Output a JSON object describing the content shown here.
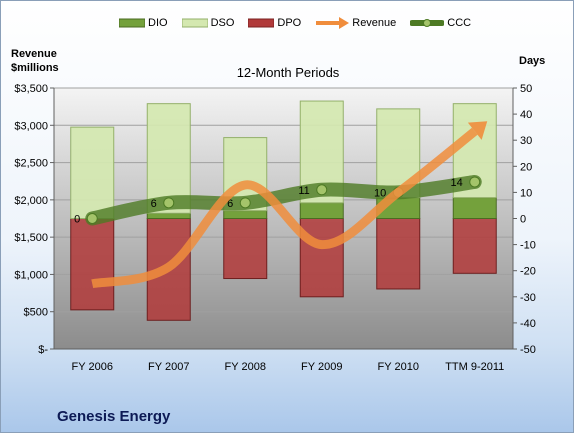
{
  "chart_data": {
    "type": "bar",
    "title": "12-Month Periods",
    "company": "Genesis Energy",
    "left_axis_label": [
      "Revenue",
      "$millions"
    ],
    "right_axis_label": "Days",
    "categories": [
      "FY 2006",
      "FY 2007",
      "FY 2008",
      "FY 2009",
      "FY 2010",
      "TTM 9-2011"
    ],
    "left_ylim": [
      0,
      3500
    ],
    "left_ticks": [
      "$-",
      "$500",
      "$1,000",
      "$1,500",
      "$2,000",
      "$2,500",
      "$3,000",
      "$3,500"
    ],
    "right_ylim": [
      -50,
      50
    ],
    "right_ticks": [
      "-50",
      "-40",
      "-30",
      "-20",
      "-10",
      "0",
      "10",
      "20",
      "30",
      "40",
      "50"
    ],
    "series": [
      {
        "name": "DIO",
        "axis": "right",
        "kind": "stacked-bar",
        "color": "#74a13c",
        "values": [
          0,
          2,
          3,
          6,
          8,
          8
        ]
      },
      {
        "name": "DSO",
        "axis": "right",
        "kind": "stacked-bar",
        "color": "#d4e8b0",
        "values": [
          35,
          42,
          28,
          39,
          34,
          36
        ]
      },
      {
        "name": "DPO",
        "axis": "right",
        "kind": "negative-bar",
        "color": "#b13a3a",
        "values": [
          -35,
          -39,
          -23,
          -30,
          -27,
          -21
        ]
      },
      {
        "name": "Revenue",
        "axis": "left",
        "kind": "line",
        "color": "#f08d3c",
        "values": [
          875,
          1100,
          2200,
          1400,
          2100,
          2920
        ]
      },
      {
        "name": "CCC",
        "axis": "right",
        "kind": "line",
        "color": "#4d7a24",
        "values": [
          0,
          6,
          6,
          11,
          10,
          14
        ]
      }
    ],
    "ccc_labels": [
      "0",
      "6",
      "6",
      "11",
      "10",
      "14"
    ],
    "legend": [
      "DIO",
      "DSO",
      "DPO",
      "Revenue",
      "CCC"
    ],
    "legend_position": "top",
    "grid": true
  }
}
